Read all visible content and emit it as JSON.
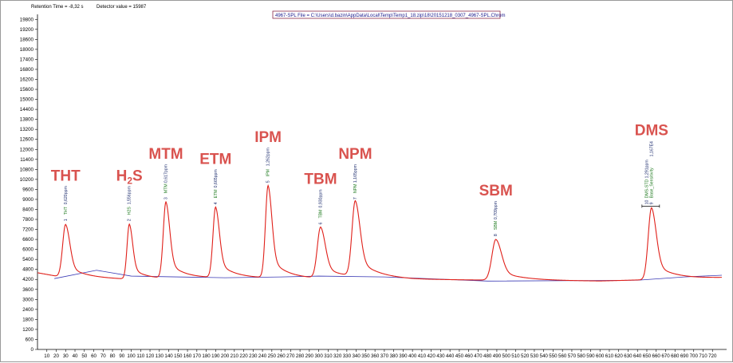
{
  "status_bar": {
    "retention_label": "Retention Time = -8,32 s",
    "detector_label": "Detector value = 15987"
  },
  "file_box": {
    "text": "4967-SPL File = C:\\Users\\d.bazin\\AppData\\Local\\Temp\\Temp1_18.zip\\18\\20151218_0307_4967-SPL.Chrom"
  },
  "colors": {
    "signal": "#e0201a",
    "baseline": "#3a3ab5",
    "peak_label": "#d9534f",
    "annotation_dark": "#1a2a6c",
    "annotation_green": "#1e7a1e",
    "axis": "#000000"
  },
  "chart_data": {
    "type": "line",
    "title": "",
    "xlabel": "",
    "ylabel": "",
    "xlim": [
      0,
      730
    ],
    "ylim": [
      0,
      20100
    ],
    "x_ticks": [
      10,
      20,
      30,
      40,
      50,
      60,
      70,
      80,
      90,
      100,
      110,
      120,
      130,
      140,
      150,
      160,
      170,
      180,
      190,
      200,
      210,
      220,
      230,
      240,
      250,
      260,
      270,
      280,
      290,
      300,
      310,
      320,
      330,
      340,
      350,
      360,
      370,
      380,
      390,
      400,
      410,
      420,
      430,
      440,
      450,
      460,
      470,
      480,
      490,
      500,
      510,
      520,
      530,
      540,
      550,
      560,
      570,
      580,
      590,
      600,
      610,
      620,
      630,
      640,
      650,
      660,
      670,
      680,
      690,
      700,
      710,
      720
    ],
    "y_ticks": [
      0,
      600,
      1200,
      1800,
      2400,
      3000,
      3600,
      4200,
      4800,
      5400,
      6000,
      6600,
      7200,
      7800,
      8400,
      9000,
      9600,
      10200,
      10800,
      11400,
      12000,
      12600,
      13200,
      13800,
      14400,
      15000,
      15600,
      16200,
      16800,
      17400,
      18000,
      18600,
      19200,
      19800
    ],
    "grid": false,
    "signal_baseline": [
      [
        0,
        4600
      ],
      [
        20,
        4400
      ],
      [
        40,
        4300
      ],
      [
        100,
        4200
      ],
      [
        200,
        4300
      ],
      [
        300,
        4250
      ],
      [
        350,
        4300
      ],
      [
        400,
        4200
      ],
      [
        500,
        4150
      ],
      [
        600,
        4100
      ],
      [
        660,
        4200
      ],
      [
        700,
        4250
      ],
      [
        730,
        4300
      ]
    ],
    "integration_baseline": [
      [
        18,
        4250
      ],
      [
        63,
        4750
      ],
      [
        100,
        4400
      ],
      [
        200,
        4300
      ],
      [
        260,
        4350
      ],
      [
        300,
        4400
      ],
      [
        370,
        4350
      ],
      [
        480,
        4100
      ],
      [
        640,
        4150
      ],
      [
        690,
        4350
      ],
      [
        730,
        4450
      ]
    ],
    "peaks": [
      {
        "name": "THT",
        "label": "THT",
        "sub": "",
        "number": "1",
        "compound": "THT",
        "amount": "0,620ppm",
        "x": 30,
        "height": 7500,
        "width": 4.5
      },
      {
        "name": "H2S",
        "label": "H",
        "sub": "2",
        "tail": "S",
        "number": "2",
        "compound": "H2S",
        "amount": "1,556ppm",
        "x": 98,
        "height": 7500,
        "width": 3.5
      },
      {
        "name": "MTM",
        "label": "MTM",
        "sub": "",
        "number": "3",
        "compound": "MTM",
        "amount": "0,617ppm",
        "x": 137,
        "height": 8800,
        "width": 4
      },
      {
        "name": "ETM",
        "label": "ETM",
        "sub": "",
        "number": "4",
        "compound": "ETM",
        "amount": "0,665ppm",
        "x": 190,
        "height": 8500,
        "width": 4
      },
      {
        "name": "IPM",
        "label": "IPM",
        "sub": "",
        "number": "5",
        "compound": "IPM",
        "amount": "1,262ppm",
        "x": 246,
        "height": 9800,
        "width": 4
      },
      {
        "name": "TBM",
        "label": "TBM",
        "sub": "",
        "number": "6",
        "compound": "TBM",
        "amount": "0,930ppm",
        "x": 302,
        "height": 7300,
        "width": 5
      },
      {
        "name": "NPM",
        "label": "NPM",
        "sub": "",
        "number": "7",
        "compound": "NPM",
        "amount": "1,165ppm",
        "x": 339,
        "height": 8800,
        "width": 5
      },
      {
        "name": "SBM",
        "label": "SBM",
        "sub": "",
        "number": "8",
        "compound": "SBM",
        "amount": "0,709ppm",
        "x": 489,
        "height": 6600,
        "width": 6
      },
      {
        "name": "DMS",
        "label": "DMS",
        "sub": "",
        "number": "9",
        "number2": "10",
        "compound": "Base_Sensitivity",
        "compound2": "DMS-STD",
        "amount": "1,167E4",
        "amount2": "1,291ppm",
        "x": 655,
        "height": 8500,
        "width": 5
      }
    ]
  }
}
